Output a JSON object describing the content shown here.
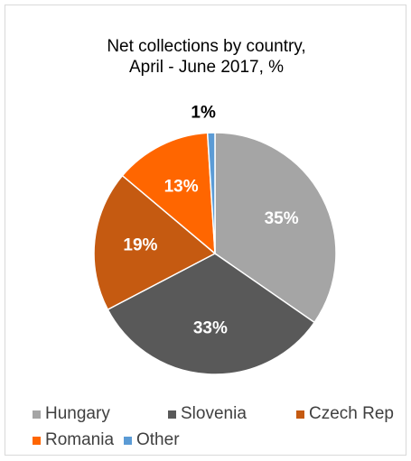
{
  "chart_data": {
    "type": "pie",
    "title_lines": [
      "Net collections by country,",
      "April - June 2017, %"
    ],
    "slices": [
      {
        "name": "Hungary",
        "value": 35,
        "label": "35%",
        "color": "#a5a5a5"
      },
      {
        "name": "Slovenia",
        "value": 33,
        "label": "33%",
        "color": "#595959"
      },
      {
        "name": "Czech Rep",
        "value": 19,
        "label": "19%",
        "color": "#c55a11"
      },
      {
        "name": "Romania",
        "value": 13,
        "label": "13%",
        "color": "#ff6600"
      },
      {
        "name": "Other",
        "value": 1,
        "label": "1%",
        "color": "#5b9bd5"
      }
    ],
    "legend_position": "bottom"
  }
}
